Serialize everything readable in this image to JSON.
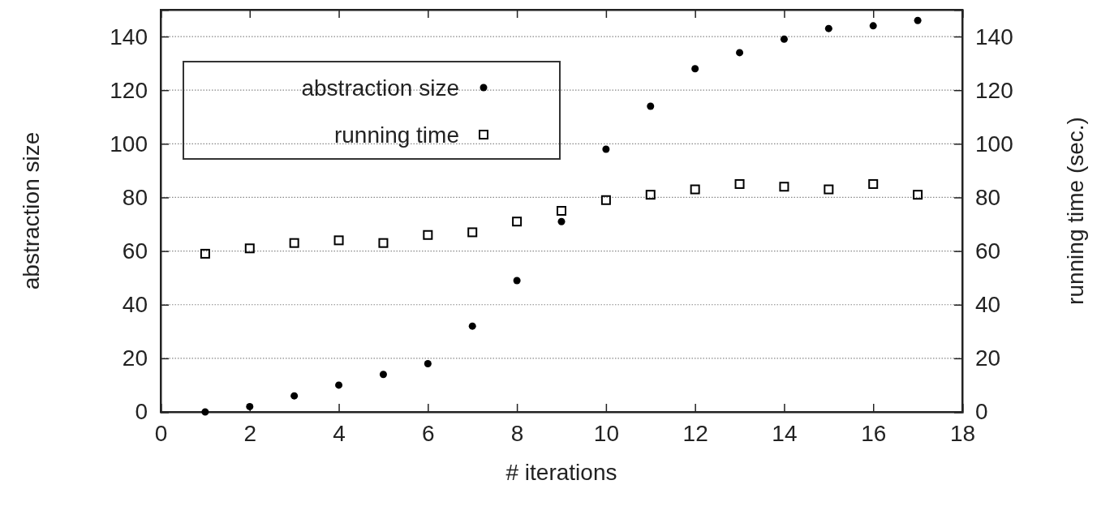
{
  "chart_data": {
    "type": "scatter",
    "xlabel": "# iterations",
    "ylabel": "abstraction size",
    "y2label": "running time (sec.)",
    "xlim": [
      0,
      18
    ],
    "xticks": [
      0,
      2,
      4,
      6,
      8,
      10,
      12,
      14,
      16,
      18
    ],
    "ylim": [
      0,
      150
    ],
    "yticks": [
      0,
      20,
      40,
      60,
      80,
      100,
      120,
      140
    ],
    "y2lim": [
      0,
      150
    ],
    "y2ticks": [
      0,
      20,
      40,
      60,
      80,
      100,
      120,
      140
    ],
    "grid": "y",
    "legend": "top left",
    "x": [
      1,
      2,
      3,
      4,
      5,
      6,
      7,
      8,
      9,
      10,
      11,
      12,
      13,
      14,
      15,
      16,
      17
    ],
    "series": [
      {
        "name": "abstraction size",
        "color": "#000000",
        "marker": "circle",
        "values": [
          0,
          2,
          6,
          10,
          14,
          18,
          32,
          49,
          71,
          98,
          114,
          128,
          134,
          139,
          143,
          144,
          146
        ]
      },
      {
        "name": "running time",
        "color": "#000000",
        "marker": "square",
        "axis": "y2",
        "values": [
          59,
          61,
          63,
          64,
          63,
          66,
          67,
          71,
          75,
          79,
          81,
          83,
          85,
          84,
          83,
          85,
          81
        ]
      }
    ]
  }
}
